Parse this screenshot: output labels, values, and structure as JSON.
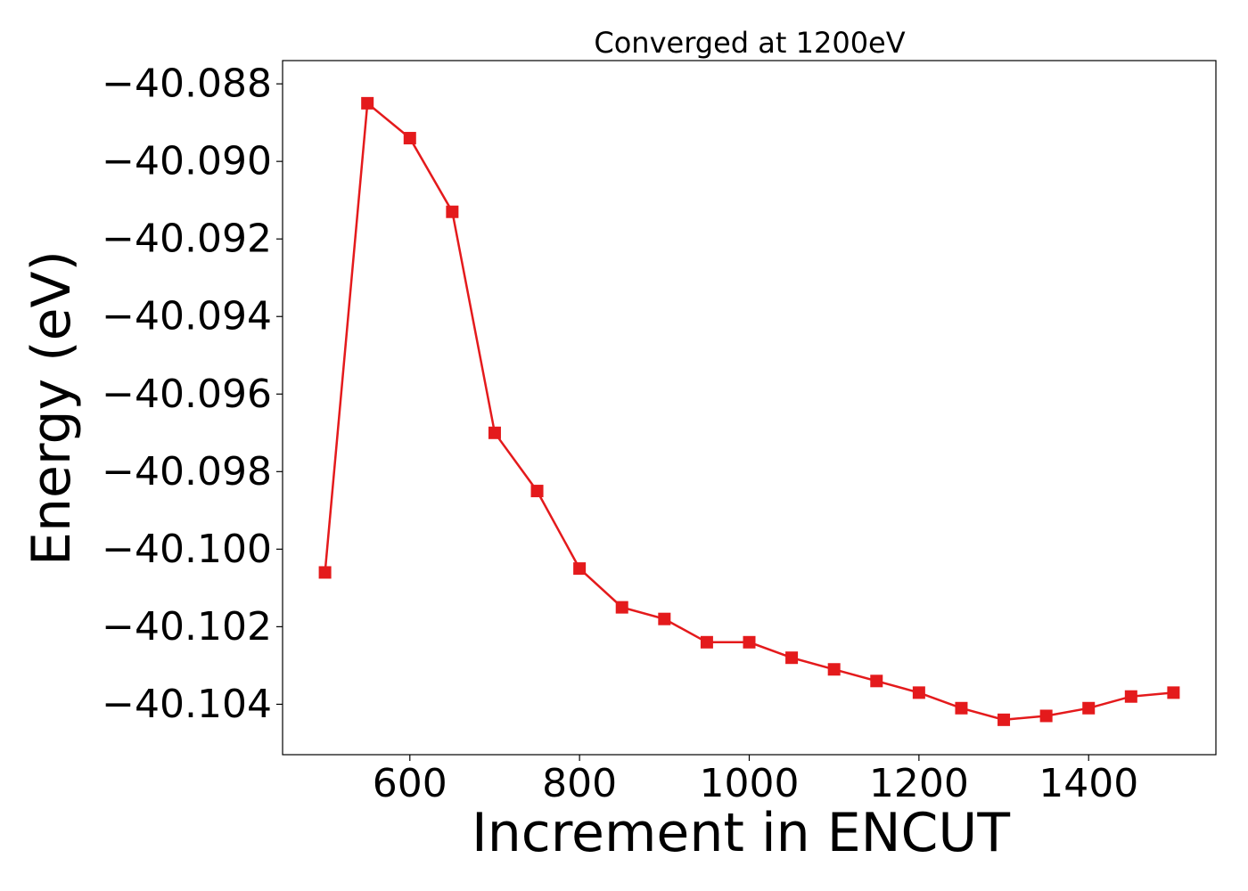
{
  "chart_data": {
    "type": "line",
    "title": "Converged at 1200eV",
    "xlabel": "Increment in ENCUT",
    "ylabel": "Energy (eV)",
    "xlim": [
      450,
      1550
    ],
    "ylim": [
      -40.1053,
      -40.0874
    ],
    "xticks": [
      600,
      800,
      1000,
      1200,
      1400
    ],
    "xtick_labels": [
      "600",
      "800",
      "1000",
      "1200",
      "1400"
    ],
    "yticks": [
      -40.088,
      -40.09,
      -40.092,
      -40.094,
      -40.096,
      -40.098,
      -40.1,
      -40.102,
      -40.104
    ],
    "ytick_labels": [
      "−40.088",
      "−40.090",
      "−40.092",
      "−40.094",
      "−40.096",
      "−40.098",
      "−40.100",
      "−40.102",
      "−40.104"
    ],
    "grid": false,
    "marker": "square",
    "color": "#e41a1c",
    "series": [
      {
        "x": [
          500,
          550,
          600,
          650,
          700,
          750,
          800,
          850,
          900,
          950,
          1000,
          1050,
          1100,
          1150,
          1200,
          1250,
          1300,
          1350,
          1400,
          1450,
          1500
        ],
        "y": [
          -40.1006,
          -40.0885,
          -40.0894,
          -40.0913,
          -40.097,
          -40.0985,
          -40.1005,
          -40.1015,
          -40.1018,
          -40.1024,
          -40.1024,
          -40.1028,
          -40.1031,
          -40.1034,
          -40.1037,
          -40.1041,
          -40.1044,
          -40.1043,
          -40.1041,
          -40.1038,
          -40.1037
        ]
      }
    ]
  }
}
